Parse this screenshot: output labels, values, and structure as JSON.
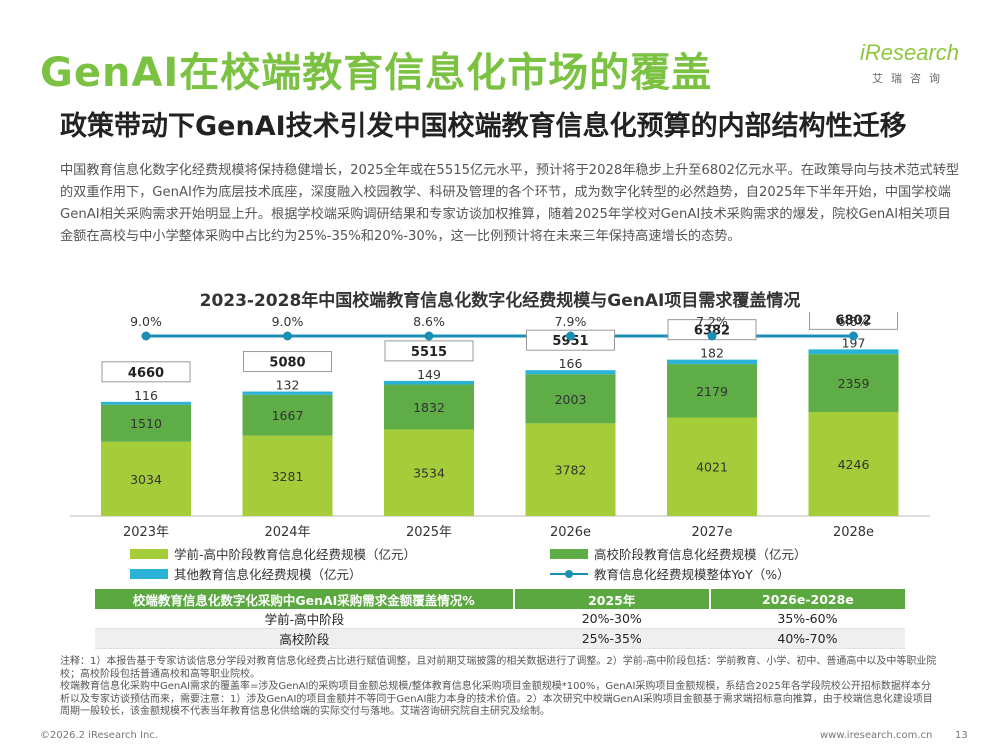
{
  "header": {
    "title": "GenAI在校端教育信息化市场的覆盖",
    "subtitle": "政策带动下GenAI技术引发中国校端教育信息化预算的内部结构性迁移",
    "logo_main": "iResearch",
    "logo_sub": "艾瑞咨询"
  },
  "body": {
    "paragraph": "中国教育信息化数字化经费规模将保持稳健增长，2025全年或在5515亿元水平，预计将于2028年稳步上升至6802亿元水平。在政策导向与技术范式转型的双重作用下，GenAI作为底层技术底座，深度融入校园教学、科研及管理的各个环节，成为数字化转型的必然趋势，自2025年下半年开始，中国学校端GenAI相关采购需求开始明显上升。根据学校端采购调研结果和专家访谈加权推算，随着2025年学校对GenAI技术采购需求的爆发，院校GenAI相关项目金额在高校与中小学整体采购中占比约为25%-35%和20%-30%，这一比例预计将在未来三年保持高速增长的态势。"
  },
  "chart_data": {
    "type": "bar",
    "stacked": true,
    "title": "2023-2028年中国校端教育信息化数字化经费规模与GenAI项目需求覆盖情况",
    "categories": [
      "2023年",
      "2024年",
      "2025年",
      "2026e",
      "2027e",
      "2028e"
    ],
    "series": [
      {
        "name": "学前-高中阶段教育信息化经费规模（亿元）",
        "values": [
          3034,
          3281,
          3534,
          3782,
          4021,
          4246
        ],
        "color": "#a5cd39"
      },
      {
        "name": "高校阶段教育信息化经费规模（亿元）",
        "values": [
          1510,
          1667,
          1832,
          2003,
          2179,
          2359
        ],
        "color": "#5fad46"
      },
      {
        "name": "其他教育信息化经费规模（亿元）",
        "values": [
          116,
          132,
          149,
          166,
          182,
          197
        ],
        "color": "#2ab3d6"
      }
    ],
    "totals": [
      4660,
      5080,
      5515,
      5951,
      6382,
      6802
    ],
    "line": {
      "name": "教育信息化经费规模整体YoY（%）",
      "values": [
        "9.0%",
        "9.0%",
        "8.6%",
        "7.9%",
        "7.2%",
        "6.6%"
      ],
      "color": "#1b8fb3"
    },
    "ylim": [
      0,
      7000
    ]
  },
  "table": {
    "headers": [
      "校端教育信息化数字化采购中GenAI采购需求金额覆盖情况%",
      "2025年",
      "2026e-2028e"
    ],
    "rows": [
      [
        "学前-高中阶段",
        "20%-30%",
        "35%-60%"
      ],
      [
        "高校阶段",
        "25%-35%",
        "40%-70%"
      ]
    ]
  },
  "notes": [
    "注释：1）本报告基于专家访谈信息分学段对教育信息化经费占比进行赋值调整，且对前期艾瑞披露的相关数据进行了调整。2）学前-高中阶段包括：学前教育、小学、初中、普通高中以及中等职业院校；高校阶段包括普通高校和高等职业院校。",
    "校端教育信息化采购中GenAI需求的覆盖率=涉及GenAI的采购项目金额总规模/整体教育信息化采购项目金额规模*100%，GenAI采购项目金额规模，系结合2025年各学段院校公开招标数据样本分析以及专家访谈预估而来，需要注意：1）涉及GenAI的项目金额并不等同于GenAI能力本身的技术价值。2）本次研究中校端GenAI采购项目金额基于需求端招标意向推算，由于校端信息化建设项目周期一般较长，该金额规模不代表当年教育信息化供给端的实际交付与落地。艾瑞咨询研究院自主研究及绘制。"
  ],
  "footer": {
    "copyright": "©2026.2 iResearch Inc.",
    "url": "www.iresearch.com.cn",
    "page": "13"
  }
}
